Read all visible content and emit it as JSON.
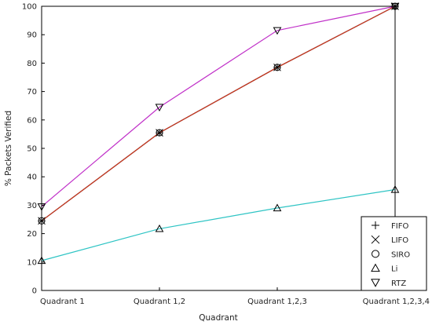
{
  "chart_data": {
    "type": "line",
    "title": "",
    "xlabel": "Quadrant",
    "ylabel": "% Packets Verified",
    "categories": [
      "Quadrant 1",
      "Quadrant 1,2",
      "Quadrant 1,2,3",
      "Quadrant 1,2,3,4"
    ],
    "ylim": [
      0,
      100
    ],
    "yticks": [
      "0",
      "10",
      "20",
      "30",
      "40",
      "50",
      "60",
      "70",
      "80",
      "90",
      "100"
    ],
    "grid": false,
    "legend_position": "bottom-right",
    "series": [
      {
        "name": "FIFO",
        "marker": "plus",
        "color": "#4b4b4b",
        "values": [
          24.5,
          55.5,
          78.5,
          100
        ]
      },
      {
        "name": "LIFO",
        "marker": "x",
        "color": "#1f3bd0",
        "values": [
          24.5,
          55.5,
          78.5,
          100
        ]
      },
      {
        "name": "SIRO",
        "marker": "circle",
        "color": "#d33a10",
        "values": [
          24.5,
          55.5,
          78.5,
          100
        ]
      },
      {
        "name": "Li",
        "marker": "triangle-up",
        "color": "#2ec4c4",
        "values": [
          10.5,
          21.7,
          29,
          35.5
        ]
      },
      {
        "name": "RTZ",
        "marker": "triangle-down",
        "color": "#c030c8",
        "values": [
          29.5,
          64.5,
          91.5,
          100
        ]
      }
    ]
  }
}
